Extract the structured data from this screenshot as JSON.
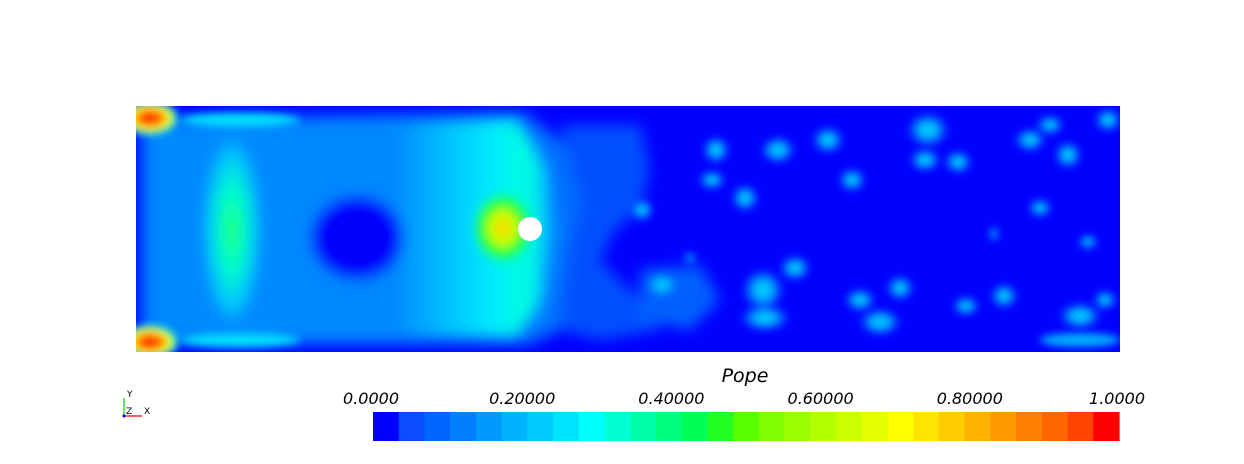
{
  "legend": {
    "title": "Pope",
    "ticks": [
      {
        "label": "0.0000",
        "value": 0.0
      },
      {
        "label": "0.20000",
        "value": 0.2
      },
      {
        "label": "0.40000",
        "value": 0.4
      },
      {
        "label": "0.60000",
        "value": 0.6
      },
      {
        "label": "0.80000",
        "value": 0.8
      },
      {
        "label": "1.0000",
        "value": 1.0
      }
    ],
    "colors": [
      "#0000ff",
      "#0a4cff",
      "#0066ff",
      "#0080ff",
      "#0099ff",
      "#00b2ff",
      "#00ccff",
      "#00e5ff",
      "#00ffff",
      "#00ffd5",
      "#00ffaa",
      "#00ff80",
      "#00ff55",
      "#22ff22",
      "#55ff00",
      "#80ff00",
      "#99ff00",
      "#b2ff00",
      "#ccff00",
      "#e5ff00",
      "#ffff00",
      "#ffe500",
      "#ffcc00",
      "#ffb200",
      "#ff9900",
      "#ff8000",
      "#ff6600",
      "#ff4400",
      "#ff0000"
    ],
    "range": [
      0.0,
      1.0
    ]
  },
  "axes": {
    "y_label": "Y",
    "z_label": "Z",
    "x_label": "X"
  },
  "field": {
    "background_color": "#0000ff",
    "obstacle": "circle"
  }
}
